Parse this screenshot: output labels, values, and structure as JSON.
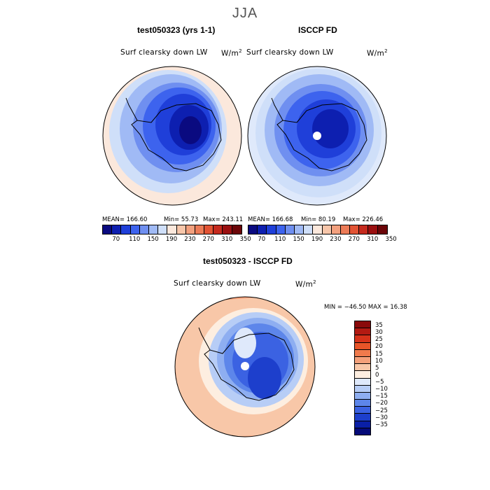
{
  "season": "JJA",
  "panels": [
    {
      "title": "test050323 (yrs 1-1)",
      "variable": "Surf clearsky down LW",
      "unit": "W/m",
      "unit_sup": "2",
      "mean": "MEAN= 166.60",
      "min": "Min=  55.73",
      "max": "Max= 243.11"
    },
    {
      "title": "ISCCP FD",
      "variable": "Surf clearsky down LW",
      "unit": "W/m",
      "unit_sup": "2",
      "mean": "MEAN= 166.68",
      "min": "Min=  80.19",
      "max": "Max= 226.46"
    }
  ],
  "diff_panel": {
    "title": "test050323 - ISCCP FD",
    "variable": "Surf clearsky down LW",
    "unit": "W/m",
    "unit_sup": "2",
    "minmax": "MIN = −46.50  MAX =  16.38"
  },
  "chart_data": [
    {
      "type": "heatmap",
      "projection": "south-polar-stereographic",
      "title": "test050323 (yrs 1-1)",
      "variable": "Surf clearsky down LW",
      "units": "W/m^2",
      "mean": 166.6,
      "min": 55.73,
      "max": 243.11,
      "colorbar_ticks": [
        70,
        110,
        150,
        190,
        230,
        270,
        310,
        350
      ]
    },
    {
      "type": "heatmap",
      "projection": "south-polar-stereographic",
      "title": "ISCCP FD",
      "variable": "Surf clearsky down LW",
      "units": "W/m^2",
      "mean": 166.68,
      "min": 80.19,
      "max": 226.46,
      "colorbar_ticks": [
        70,
        110,
        150,
        190,
        230,
        270,
        310,
        350
      ]
    },
    {
      "type": "heatmap",
      "projection": "south-polar-stereographic",
      "title": "test050323 - ISCCP FD",
      "variable": "Surf clearsky down LW",
      "units": "W/m^2",
      "min": -46.5,
      "max": 16.38,
      "colorbar_ticks": [
        35,
        30,
        25,
        20,
        15,
        10,
        5,
        0,
        -5,
        -10,
        -15,
        -20,
        -25,
        -30,
        -35
      ]
    }
  ],
  "colorbar_abs": {
    "ticks": [
      "70",
      "110",
      "150",
      "190",
      "230",
      "270",
      "310",
      "350"
    ],
    "colors": [
      "#0a0a80",
      "#0d1fb0",
      "#1f3fd9",
      "#3d63ee",
      "#6f8ff0",
      "#a0baf5",
      "#cfdff9",
      "#fbe8dc",
      "#f7c6aa",
      "#f2a07e",
      "#ec7b57",
      "#e25334",
      "#c52a1e",
      "#9a0f10",
      "#6b0508"
    ]
  },
  "colorbar_diff": {
    "ticks": [
      "35",
      "30",
      "25",
      "20",
      "15",
      "10",
      "5",
      "0",
      "−5",
      "−10",
      "−15",
      "−20",
      "−25",
      "−30",
      "−35"
    ],
    "colors": [
      "#8a0a0a",
      "#b31a12",
      "#d6321a",
      "#e85428",
      "#f07a4c",
      "#f4a07a",
      "#f8c7a8",
      "#fdeee0",
      "#dfe9fb",
      "#b7cdf6",
      "#8eaef1",
      "#5d86ea",
      "#3b62e2",
      "#1d3fcc",
      "#0a1fa6",
      "#050a78"
    ]
  }
}
